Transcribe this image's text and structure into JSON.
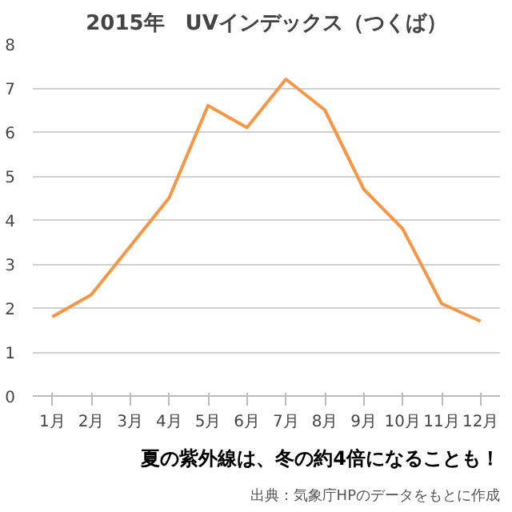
{
  "chart_data": {
    "type": "line",
    "title": "2015年　UVインデックス（つくば）",
    "categories": [
      "1月",
      "2月",
      "3月",
      "4月",
      "5月",
      "6月",
      "7月",
      "8月",
      "9月",
      "10月",
      "11月",
      "12月"
    ],
    "series": [
      {
        "color": "#f79646",
        "values": [
          1.8,
          2.3,
          3.4,
          4.5,
          6.6,
          6.1,
          7.2,
          6.5,
          4.7,
          3.8,
          2.1,
          1.7
        ]
      }
    ],
    "ylim": [
      0,
      8
    ],
    "yticks": [
      0,
      1,
      2,
      3,
      4,
      5,
      6,
      7,
      8
    ],
    "grid": "y",
    "annotations": [
      "夏の紫外線は、冬の約4倍になることも！",
      "出典：気象庁HPのデータをもとに作成"
    ]
  }
}
